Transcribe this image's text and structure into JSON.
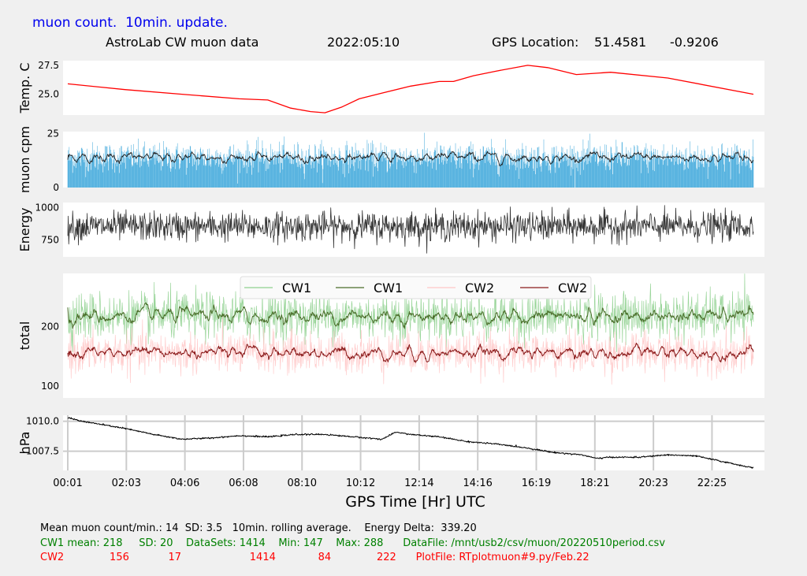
{
  "header": {
    "caption": "muon count.  10min. update.",
    "title": "AstroLab CW muon data",
    "date": "2022:05:10",
    "gps_label": "GPS Location:",
    "lat": "51.4581",
    "lon": "-0.9206"
  },
  "chart_data": [
    {
      "type": "line",
      "ylabel": "Temp. C",
      "yticks": [
        "27.5",
        "25.0"
      ],
      "ylim": [
        23.2,
        27.9
      ],
      "color": "#ff0000",
      "x_hours": [
        0.0,
        2.0,
        4.0,
        6.0,
        7.0,
        7.8,
        8.5,
        9.0,
        9.6,
        10.2,
        11.0,
        12.0,
        13.0,
        13.5,
        14.2,
        15.0,
        16.1,
        16.8,
        17.8,
        19.0,
        21.0,
        24.0
      ],
      "values": [
        25.9,
        25.4,
        25.0,
        24.6,
        24.5,
        23.8,
        23.5,
        23.4,
        23.9,
        24.6,
        25.1,
        25.7,
        26.1,
        26.1,
        26.6,
        27.0,
        27.5,
        27.3,
        26.7,
        26.9,
        26.4,
        25.0
      ]
    },
    {
      "type": "bar+line",
      "ylabel": "muon cpm",
      "yticks": [
        "25",
        "0"
      ],
      "ylim": [
        0,
        26
      ],
      "mean": 14,
      "sd": 3.5,
      "bar_color": "#5ab4e0",
      "line_color": "#222222"
    },
    {
      "type": "line",
      "ylabel": "Energy",
      "yticks": [
        "1000",
        "750"
      ],
      "ylim": [
        620,
        1040
      ],
      "mean": 855,
      "sd": 55,
      "color": "#333333"
    },
    {
      "type": "line",
      "ylabel": "total",
      "yticks": [
        "200",
        "100"
      ],
      "ylim": [
        80,
        290
      ],
      "legend_position": "top-center",
      "legend": [
        {
          "name": "CW1",
          "color": "#8fd08f"
        },
        {
          "name": "CW1",
          "color": "#4a6e2a"
        },
        {
          "name": "CW2",
          "color": "#ffc8c8"
        },
        {
          "name": "CW2",
          "color": "#8b1a1a"
        }
      ],
      "series": [
        {
          "name": "CW1",
          "mean": 218,
          "sd": 20
        },
        {
          "name": "CW2",
          "mean": 156,
          "sd": 17
        }
      ]
    },
    {
      "type": "line",
      "ylabel": "hPa",
      "yticks": [
        "1010.0",
        "1007.5"
      ],
      "ylim": [
        1005.9,
        1010.5
      ],
      "grid": true,
      "color": "#000000",
      "x_hours": [
        0.0,
        0.5,
        2.0,
        3.0,
        4.0,
        5.0,
        6.0,
        7.0,
        8.0,
        9.0,
        10.0,
        11.0,
        11.5,
        12.0,
        13.0,
        14.0,
        15.0,
        16.0,
        17.0,
        18.0,
        18.5,
        19.0,
        20.0,
        21.0,
        22.0,
        23.0,
        24.0
      ],
      "values": [
        1010.3,
        1010.0,
        1009.4,
        1008.9,
        1008.5,
        1008.6,
        1008.8,
        1008.7,
        1008.9,
        1008.9,
        1008.7,
        1008.5,
        1009.1,
        1008.9,
        1008.7,
        1008.3,
        1008.1,
        1007.8,
        1007.4,
        1007.2,
        1006.9,
        1007.0,
        1007.0,
        1007.2,
        1007.1,
        1006.6,
        1006.1
      ]
    }
  ],
  "x_axis": {
    "ticks": [
      "00:01",
      "02:03",
      "04:06",
      "06:08",
      "08:10",
      "10:12",
      "12:14",
      "14:16",
      "16:19",
      "18:21",
      "20:23",
      "22:25"
    ],
    "label": "GPS Time  [Hr] UTC"
  },
  "stats": {
    "line1": "Mean muon count/min.: 14  SD: 3.5   10min. rolling average.    Energy Delta:  339.20",
    "line2": "CW1 mean: 218     SD: 20    DataSets: 1414    Min: 147    Max: 288      DataFile: /mnt/usb2/csv/muon/20220510period.csv",
    "line3": "CW2              156            17                     1414             84              222      PlotFile: RTplotmuon#9.py/Feb.22"
  },
  "colors": {
    "caption": "#0000ee",
    "cw1_text": "#008000",
    "cw2_text": "#ff0000",
    "panel_bg": "#ffffff",
    "page_bg": "#f0f0f0"
  }
}
